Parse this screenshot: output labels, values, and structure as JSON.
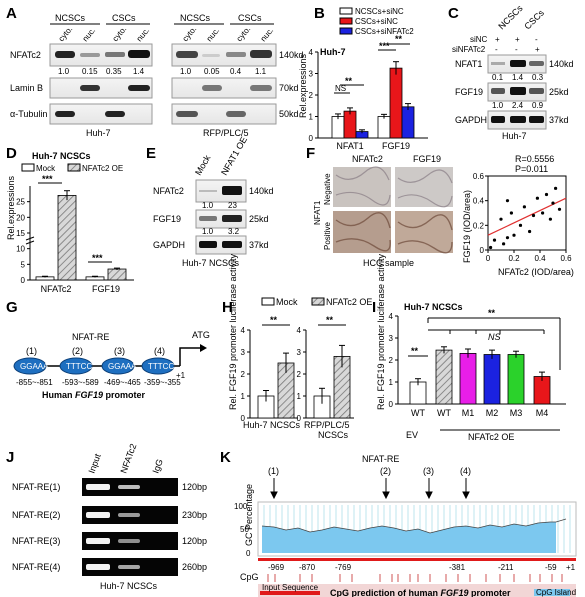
{
  "panels": {
    "a": "A",
    "b": "B",
    "c": "C",
    "d": "D",
    "e": "E",
    "f": "F",
    "g": "G",
    "h": "H",
    "i": "I",
    "j": "J",
    "k": "K"
  },
  "panel_a": {
    "groups": [
      "NCSCs",
      "CSCs",
      "NCSCs",
      "CSCs"
    ],
    "fractions": [
      "cyto.",
      "nuc.",
      "cyto.",
      "nuc.",
      "cyto.",
      "nuc.",
      "cyto.",
      "nuc."
    ],
    "rows": [
      "NFATc2",
      "Lamin B",
      "α-Tubulin"
    ],
    "sizes": [
      "140kd",
      "70kd",
      "50kd"
    ],
    "quant": [
      "1.0",
      "0.15",
      "0.35",
      "1.4",
      "1.0",
      "0.05",
      "0.4",
      "1.1"
    ],
    "cell_lines": [
      "Huh-7",
      "RFP/PLC/5"
    ]
  },
  "panel_b": {
    "cell": "Huh-7",
    "sig": [
      "NS",
      "**",
      "***",
      "**"
    ]
  },
  "panel_c": {
    "headers": [
      "NCSCs",
      "CSCs"
    ],
    "treatments": [
      {
        "label": "siNC",
        "marks": [
          "+",
          "+",
          "-"
        ]
      },
      {
        "label": "siNFATc2",
        "marks": [
          "-",
          "-",
          "+"
        ]
      }
    ],
    "rows": [
      "NFAT1",
      "FGF19",
      "GAPDH"
    ],
    "sizes": [
      "140kd",
      "25kd",
      "37kd"
    ],
    "quant_nfat1": [
      "0.1",
      "1.4",
      "0.3"
    ],
    "quant_fgf19": [
      "1.0",
      "2.4",
      "0.9"
    ],
    "cell": "Huh-7"
  },
  "panel_d": {
    "title": "Huh-7 NCSCs",
    "sig": [
      "***",
      "***"
    ]
  },
  "panel_e": {
    "headers": [
      "Mock",
      "NFAT1 OE"
    ],
    "rows": [
      "NFATc2",
      "FGF19",
      "GAPDH"
    ],
    "sizes": [
      "140kd",
      "25kd",
      "37kd"
    ],
    "quant_nfatc2": [
      "1.0",
      "23"
    ],
    "quant_fgf19": [
      "1.0",
      "3.2"
    ],
    "cell": "Huh-7 NCSCs"
  },
  "panel_f": {
    "cols": [
      "NFATc2",
      "FGF19"
    ],
    "rows": [
      "Negative",
      "Positive"
    ],
    "side": "NFAT1",
    "caption": "HCC sample",
    "stats": [
      "R=0.5556",
      "P=0.011"
    ],
    "xlabel": "NFATc2 (IOD/area)",
    "ylabel": "FGF19 (IOD/area)"
  },
  "panel_g": {
    "re_label": "NFAT-RE",
    "atg": "ATG",
    "plus1": "+1",
    "sites": [
      {
        "n": "(1)",
        "seq": "GGAAA",
        "pos": "-855~-851"
      },
      {
        "n": "(2)",
        "seq": "TTTCC",
        "pos": "-593~-589"
      },
      {
        "n": "(3)",
        "seq": "GGAAA",
        "pos": "-469~-465"
      },
      {
        "n": "(4)",
        "seq": "TTTCC",
        "pos": "-359~-355"
      }
    ],
    "promoter_pre": "Human ",
    "promoter_gene": "FGF19",
    "promoter_post": " promoter"
  },
  "panel_h": {
    "sig": [
      "**",
      "**"
    ],
    "groups": [
      "Huh-7 NCSCs",
      "RFP/PLC/5",
      "NCSCs"
    ]
  },
  "panel_i": {
    "title": "Huh-7 NCSCs",
    "sig": [
      "**",
      "**",
      "NS"
    ],
    "groups": [
      "EV",
      "NFATc2 OE"
    ]
  },
  "panel_j": {
    "headers": [
      "Input",
      "NFATc2",
      "IgG"
    ],
    "rows": [
      "NFAT-RE(1)",
      "NFAT-RE(2)",
      "NFAT-RE(3)",
      "NFAT-RE(4)"
    ],
    "sizes": [
      "120bp",
      "230bp",
      "120bp",
      "260bp"
    ],
    "cell": "Huh-7 NCSCs"
  },
  "panel_k": {
    "re_label": "NFAT-RE",
    "markers": [
      "(1)",
      "(2)",
      "(3)",
      "(4)"
    ],
    "ylabel": "GC Percentage",
    "yticks": [
      "100",
      "50",
      "0"
    ],
    "positions": [
      "-969",
      "-870",
      "-769",
      "-381",
      "-211",
      "-59",
      "+1"
    ],
    "cpg": "CpG",
    "input_seq": "Input Sequence",
    "island": "CpG Island",
    "caption_pre": "CpG prediction of human ",
    "caption_gene": "FGF19",
    "caption_post": " promoter"
  },
  "chart_data": [
    {
      "panel": "B",
      "type": "bar",
      "ylabel": "Rel.expressions",
      "ylim": [
        0,
        4
      ],
      "yticks": [
        0,
        1,
        2,
        3,
        4
      ],
      "categories": [
        "NFAT1",
        "FGF19"
      ],
      "series": [
        {
          "name": "NCSCs+siNC",
          "color": "#ffffff",
          "values": [
            1.0,
            1.0
          ],
          "errors": [
            0.12,
            0.1
          ]
        },
        {
          "name": "CSCs+siNC",
          "color": "#e8161a",
          "values": [
            1.25,
            3.25
          ],
          "errors": [
            0.15,
            0.3
          ]
        },
        {
          "name": "CSCs+siNFATc2",
          "color": "#1b22e0",
          "values": [
            0.3,
            1.45
          ],
          "errors": [
            0.08,
            0.15
          ]
        }
      ]
    },
    {
      "panel": "D",
      "type": "bar",
      "ylabel": "Rel.expressions",
      "ylim": [
        0,
        30
      ],
      "yticks": [
        0,
        5,
        10,
        15,
        20,
        25
      ],
      "categories": [
        "NFATc2",
        "FGF19"
      ],
      "series": [
        {
          "name": "Mock",
          "values": [
            1.0,
            1.0
          ],
          "errors": [
            0.2,
            0.2
          ]
        },
        {
          "name": "NFATc2 OE",
          "values": [
            27.0,
            3.5
          ],
          "errors": [
            1.5,
            0.3
          ]
        }
      ]
    },
    {
      "panel": "F",
      "type": "scatter",
      "xlabel": "NFATc2 (IOD/area)",
      "ylabel": "FGF19 (IOD/area)",
      "xlim": [
        0,
        0.6
      ],
      "ylim": [
        0,
        0.6
      ],
      "xticks": [
        0,
        0.2,
        0.4,
        0.6
      ],
      "yticks": [
        0,
        0.2,
        0.4,
        0.6
      ],
      "points": [
        [
          0.02,
          0.02
        ],
        [
          0.05,
          0.08
        ],
        [
          0.1,
          0.25
        ],
        [
          0.12,
          0.05
        ],
        [
          0.15,
          0.1
        ],
        [
          0.18,
          0.3
        ],
        [
          0.2,
          0.12
        ],
        [
          0.25,
          0.2
        ],
        [
          0.28,
          0.35
        ],
        [
          0.32,
          0.15
        ],
        [
          0.35,
          0.28
        ],
        [
          0.38,
          0.42
        ],
        [
          0.42,
          0.3
        ],
        [
          0.45,
          0.45
        ],
        [
          0.48,
          0.25
        ],
        [
          0.5,
          0.38
        ],
        [
          0.52,
          0.5
        ],
        [
          0.55,
          0.33
        ],
        [
          0.15,
          0.4
        ]
      ],
      "fit": [
        [
          0.0,
          0.12
        ],
        [
          0.6,
          0.42
        ]
      ]
    },
    {
      "panel": "H",
      "type": "bar",
      "ylabel": "Rel. FGF19 promoter luciferase activity",
      "ylim": [
        0,
        4
      ],
      "yticks": [
        0,
        1,
        2,
        3,
        4
      ],
      "categories": [
        "Huh-7 NCSCs",
        "RFP/PLC/5 NCSCs"
      ],
      "series": [
        {
          "name": "Mock",
          "values": [
            1.0,
            1.0
          ],
          "errors": [
            0.25,
            0.35
          ]
        },
        {
          "name": "NFATc2 OE",
          "values": [
            2.5,
            2.8
          ],
          "errors": [
            0.45,
            0.5
          ]
        }
      ]
    },
    {
      "panel": "I",
      "type": "bar",
      "ylabel": "Rel. FGF19 promoter luciferase activity",
      "ylim": [
        0,
        4
      ],
      "yticks": [
        0,
        1,
        2,
        3,
        4
      ],
      "categories": [
        "WT",
        "WT",
        "M1",
        "M2",
        "M3",
        "M4"
      ],
      "values": [
        1.0,
        2.45,
        2.3,
        2.25,
        2.25,
        1.25
      ],
      "errors": [
        0.15,
        0.15,
        0.2,
        0.2,
        0.15,
        0.2
      ],
      "colors": [
        "#ffffff",
        "hatch",
        "#e81ee8",
        "#1b22e0",
        "#2bd22b",
        "#e8161a"
      ]
    }
  ]
}
